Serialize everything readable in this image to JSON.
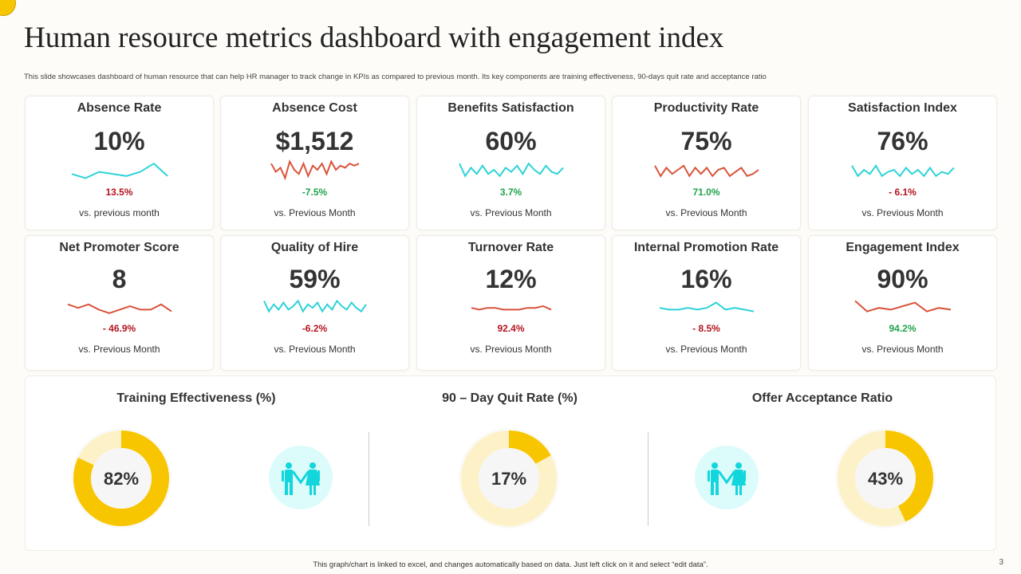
{
  "title": "Human resource metrics dashboard with engagement index",
  "subtitle": "This slide showcases dashboard of human resource that can help HR manager to track change in KPIs as compared to previous month. Its key components are training effectiveness, 90-days quit rate and acceptance ratio",
  "colors": {
    "teal": "#2ed3d8",
    "red": "#d9533b",
    "up_red": "#b3141e",
    "down_green": "#1fa34a",
    "yellow": "#f7c600",
    "light_yellow": "#fdf1c8"
  },
  "cards": [
    {
      "title": "Absence Rate",
      "value": "10%",
      "change": "13.5%",
      "change_color": "red",
      "vs": "vs. previous month",
      "spark_color": "teal",
      "trend": [
        3,
        1,
        4,
        3,
        2,
        4,
        8,
        2
      ]
    },
    {
      "title": "Absence Cost",
      "value": "$1,512",
      "change": "-7.5%",
      "change_color": "green",
      "vs": "vs. Previous Month",
      "spark_color": "red",
      "trend": [
        8,
        4,
        6,
        1,
        9,
        5,
        3,
        8,
        2,
        7,
        5,
        8,
        3,
        9,
        5,
        7,
        6,
        8,
        7,
        8
      ]
    },
    {
      "title": "Benefits Satisfaction",
      "value": "60%",
      "change": "3.7%",
      "change_color": "green",
      "vs": "vs. Previous Month",
      "spark_color": "teal",
      "trend": [
        8,
        2,
        6,
        3,
        7,
        3,
        5,
        2,
        6,
        4,
        7,
        3,
        8,
        5,
        3,
        7,
        4,
        3,
        6
      ]
    },
    {
      "title": "Productivity Rate",
      "value": "75%",
      "change": "71.0%",
      "change_color": "green",
      "vs": "vs. Previous Month",
      "spark_color": "red",
      "trend": [
        7,
        2,
        6,
        3,
        5,
        7,
        2,
        6,
        3,
        6,
        2,
        5,
        6,
        2,
        4,
        6,
        2,
        3,
        5
      ]
    },
    {
      "title": "Satisfaction Index",
      "value": "76%",
      "change": "- 6.1%",
      "change_color": "red",
      "vs": "vs. Previous Month",
      "spark_color": "teal",
      "trend": [
        7,
        2,
        5,
        3,
        7,
        2,
        4,
        5,
        2,
        6,
        3,
        5,
        2,
        6,
        2,
        4,
        3,
        6
      ]
    },
    {
      "title": "Net Promoter Score",
      "value": "8",
      "change": "- 46.9%",
      "change_color": "red",
      "vs": "vs. Previous Month",
      "spark_color": "red",
      "trend": [
        6,
        4,
        6,
        3,
        1,
        3,
        5,
        3,
        3,
        6,
        2
      ]
    },
    {
      "title": "Quality of Hire",
      "value": "59%",
      "change": "-6.2%",
      "change_color": "red",
      "vs": "vs. Previous Month",
      "spark_color": "teal",
      "trend": [
        8,
        2,
        6,
        3,
        7,
        3,
        5,
        8,
        2,
        6,
        4,
        7,
        2,
        6,
        3,
        8,
        5,
        3,
        7,
        4,
        2,
        6
      ]
    },
    {
      "title": "Turnover Rate",
      "value": "12%",
      "change": "92.4%",
      "change_color": "red",
      "vs": "vs. Previous Month",
      "spark_color": "red",
      "trend": [
        4,
        3,
        4,
        4,
        3,
        3,
        3,
        4,
        4,
        5,
        3
      ]
    },
    {
      "title": "Internal Promotion Rate",
      "value": "16%",
      "change": "- 8.5%",
      "change_color": "red",
      "vs": "vs. Previous Month",
      "spark_color": "teal",
      "trend": [
        4,
        3,
        3,
        4,
        3,
        4,
        7,
        3,
        4,
        3,
        2
      ]
    },
    {
      "title": "Engagement Index",
      "value": "90%",
      "change": "94.2%",
      "change_color": "green",
      "vs": "vs. Previous Month",
      "spark_color": "red",
      "trend": [
        8,
        2,
        4,
        3,
        5,
        7,
        2,
        4,
        3
      ]
    }
  ],
  "donuts": [
    {
      "title": "Training Effectiveness (%)",
      "value": 82,
      "label": "82%"
    },
    {
      "title": "90 – Day Quit Rate (%)",
      "value": 17,
      "label": "17%"
    },
    {
      "title": "Offer Acceptance Ratio",
      "value": 43,
      "label": "43%"
    }
  ],
  "icons": [
    "couple-icon",
    "couple-icon"
  ],
  "footer": "This graph/chart is linked to excel, and changes automatically based on data. Just left click on it and select “edit data”.",
  "page_number": "3"
}
